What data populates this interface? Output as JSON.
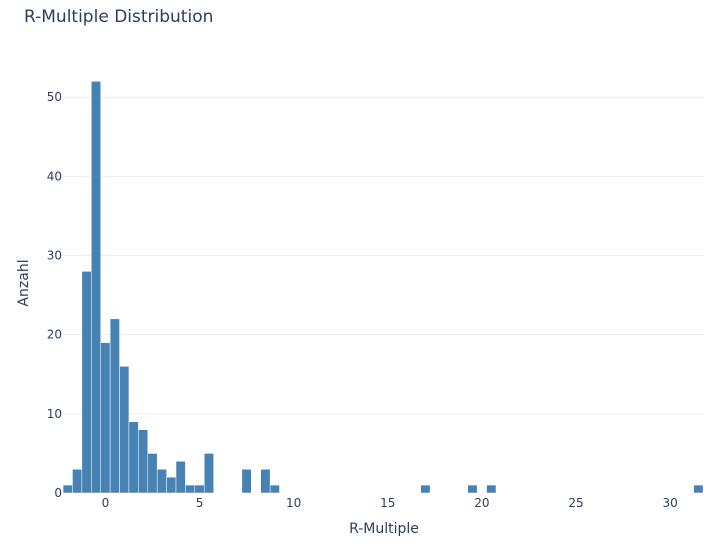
{
  "chart_data": {
    "type": "bar",
    "title": "R-Multiple Distribution",
    "xlabel": "R-Multiple",
    "ylabel": "Anzahl",
    "xlim": [
      -2.2,
      31.8
    ],
    "ylim": [
      0,
      54.7
    ],
    "x_ticks": [
      0,
      5,
      10,
      15,
      20,
      25,
      30
    ],
    "y_ticks": [
      0,
      10,
      20,
      30,
      40,
      50
    ],
    "grid": true,
    "color": "#4682b4",
    "bin_width": 0.5,
    "bins": [
      {
        "x": -2.0,
        "y": 1
      },
      {
        "x": -1.5,
        "y": 3
      },
      {
        "x": -1.0,
        "y": 28
      },
      {
        "x": -0.5,
        "y": 52
      },
      {
        "x": 0.0,
        "y": 19
      },
      {
        "x": 0.5,
        "y": 22
      },
      {
        "x": 1.0,
        "y": 16
      },
      {
        "x": 1.5,
        "y": 9
      },
      {
        "x": 2.0,
        "y": 8
      },
      {
        "x": 2.5,
        "y": 5
      },
      {
        "x": 3.0,
        "y": 3
      },
      {
        "x": 3.5,
        "y": 2
      },
      {
        "x": 4.0,
        "y": 4
      },
      {
        "x": 4.5,
        "y": 1
      },
      {
        "x": 5.0,
        "y": 1
      },
      {
        "x": 5.5,
        "y": 5
      },
      {
        "x": 7.5,
        "y": 3
      },
      {
        "x": 8.5,
        "y": 3
      },
      {
        "x": 9.0,
        "y": 1
      },
      {
        "x": 17.0,
        "y": 1
      },
      {
        "x": 19.5,
        "y": 1
      },
      {
        "x": 20.5,
        "y": 1
      },
      {
        "x": 31.5,
        "y": 1
      }
    ]
  }
}
